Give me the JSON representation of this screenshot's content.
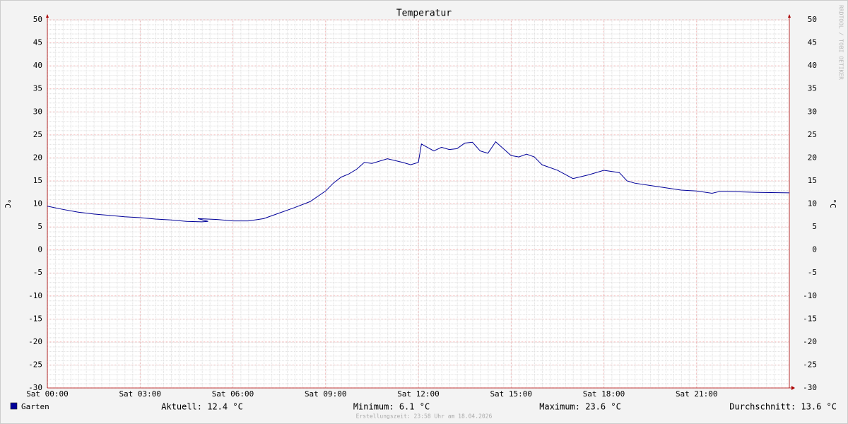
{
  "chart_data": {
    "type": "line",
    "title": "Temperatur",
    "y_label": "°C",
    "y2_label": "°C",
    "watermark": "RRDTOOL / TOBI OETIKER",
    "footer": "Erstellungszeit: 23:58 Uhr am 18.04.2026",
    "xlim": [
      0,
      24
    ],
    "xticks": [
      {
        "value": 0,
        "label": "Sat 00:00"
      },
      {
        "value": 3,
        "label": "Sat 03:00"
      },
      {
        "value": 6,
        "label": "Sat 06:00"
      },
      {
        "value": 9,
        "label": "Sat 09:00"
      },
      {
        "value": 12,
        "label": "Sat 12:00"
      },
      {
        "value": 15,
        "label": "Sat 15:00"
      },
      {
        "value": 18,
        "label": "Sat 18:00"
      },
      {
        "value": 21,
        "label": "Sat 21:00"
      }
    ],
    "ylim": [
      -30,
      50
    ],
    "yticks": [
      -30,
      -25,
      -20,
      -15,
      -10,
      -5,
      0,
      5,
      10,
      15,
      20,
      25,
      30,
      35,
      40,
      45,
      50
    ],
    "grid": true,
    "x": [
      0,
      0.5,
      1,
      1.5,
      2,
      2.5,
      3,
      3.5,
      4,
      4.5,
      5,
      5.2,
      4.87,
      5.5,
      6,
      6.5,
      7,
      7.5,
      8,
      8.5,
      9,
      9.25,
      9.5,
      9.75,
      10,
      10.25,
      10.5,
      11,
      11.5,
      11.75,
      12,
      12.1,
      12.5,
      12.75,
      13,
      13.25,
      13.5,
      13.75,
      14,
      14.25,
      14.5,
      14.75,
      15,
      15.25,
      15.5,
      15.75,
      16,
      16.5,
      17,
      17.5,
      18,
      18.5,
      18.75,
      19,
      19.5,
      20,
      20.5,
      21,
      21.5,
      21.75,
      22,
      22.5,
      23,
      24
    ],
    "series": [
      {
        "name": "Garten",
        "color": "#000099",
        "values": [
          9.5,
          8.8,
          8.2,
          7.8,
          7.5,
          7.2,
          7.0,
          6.7,
          6.5,
          6.2,
          6.1,
          6.2,
          6.8,
          6.6,
          6.3,
          6.3,
          6.8,
          8.0,
          9.2,
          10.5,
          12.8,
          14.5,
          15.8,
          16.5,
          17.5,
          19.0,
          18.8,
          19.8,
          19.0,
          18.5,
          19.0,
          23.0,
          21.5,
          22.3,
          21.8,
          22.0,
          23.2,
          23.4,
          21.5,
          21.0,
          23.5,
          22.0,
          20.5,
          20.2,
          20.8,
          20.2,
          18.5,
          17.3,
          15.5,
          16.3,
          17.3,
          16.8,
          15.0,
          14.5,
          14.0,
          13.5,
          13.0,
          12.8,
          12.3,
          12.7,
          12.7,
          12.6,
          12.5,
          12.4
        ]
      }
    ],
    "stats": [
      "Aktuell: 12.4 °C",
      "Minimum: 6.1 °C",
      "Maximum: 23.6 °C",
      "Durchschnitt: 13.6 °C"
    ]
  }
}
